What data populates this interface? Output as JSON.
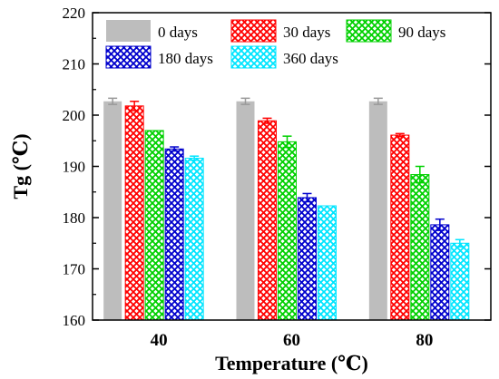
{
  "chart_data": {
    "type": "bar",
    "title": "",
    "xlabel": "Temperature (℃)",
    "ylabel": "Tg (℃)",
    "categories": [
      "40",
      "60",
      "80"
    ],
    "ylim": [
      160,
      220
    ],
    "yticks": [
      "160",
      "170",
      "180",
      "190",
      "200",
      "210",
      "220"
    ],
    "grid": false,
    "legend_position": "top-center",
    "series": [
      {
        "name": "0 days",
        "color": "#bdbdbd",
        "pattern": "solid",
        "values": [
          202.7,
          202.7,
          202.7
        ],
        "errors": [
          0.6,
          0.6,
          0.6
        ]
      },
      {
        "name": "30 days",
        "color": "#ff0000",
        "pattern": "crosshatch",
        "values": [
          201.8,
          198.9,
          196.1
        ],
        "errors": [
          0.9,
          0.5,
          0.3
        ]
      },
      {
        "name": "90 days",
        "color": "#00d000",
        "pattern": "crosshatch",
        "values": [
          197.0,
          194.8,
          188.4
        ],
        "errors": [
          0.0,
          1.1,
          1.6
        ]
      },
      {
        "name": "180 days",
        "color": "#0000cc",
        "pattern": "crosshatch",
        "values": [
          193.4,
          183.9,
          178.6
        ],
        "errors": [
          0.4,
          0.8,
          1.1
        ]
      },
      {
        "name": "360 days",
        "color": "#00e5ff",
        "pattern": "crosshatch",
        "values": [
          191.6,
          182.3,
          175.0
        ],
        "errors": [
          0.4,
          0.0,
          0.7
        ]
      }
    ]
  }
}
